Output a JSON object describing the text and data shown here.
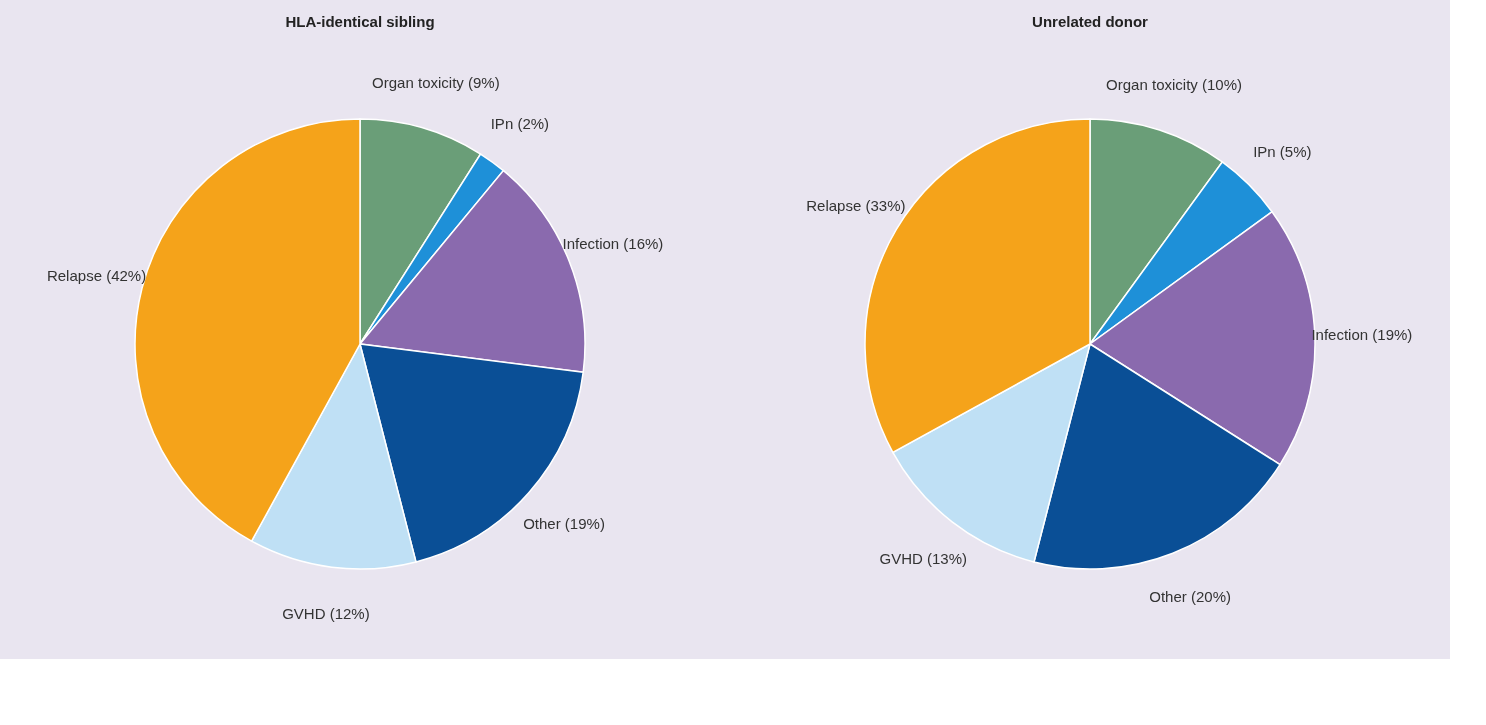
{
  "chart_data": [
    {
      "type": "pie",
      "title": "HLA-identical sibling",
      "categories": [
        "Organ toxicity (9%)",
        "IPn (2%)",
        "Infection (16%)",
        "Other (19%)",
        "GVHD (12%)",
        "Relapse (42%)"
      ],
      "values": [
        9,
        2,
        16,
        19,
        12,
        42
      ],
      "colors": [
        "#6a9e78",
        "#1e90d8",
        "#8a6aae",
        "#0a4f96",
        "#bfe0f5",
        "#f5a31a"
      ]
    },
    {
      "type": "pie",
      "title": "Unrelated donor",
      "categories": [
        "Organ toxicity (10%)",
        "IPn (5%)",
        "Infection (19%)",
        "Other (20%)",
        "GVHD (13%)",
        "Relapse (33%)"
      ],
      "values": [
        10,
        5,
        19,
        20,
        13,
        33
      ],
      "colors": [
        "#6a9e78",
        "#1e90d8",
        "#8a6aae",
        "#0a4f96",
        "#bfe0f5",
        "#f5a31a"
      ]
    }
  ]
}
